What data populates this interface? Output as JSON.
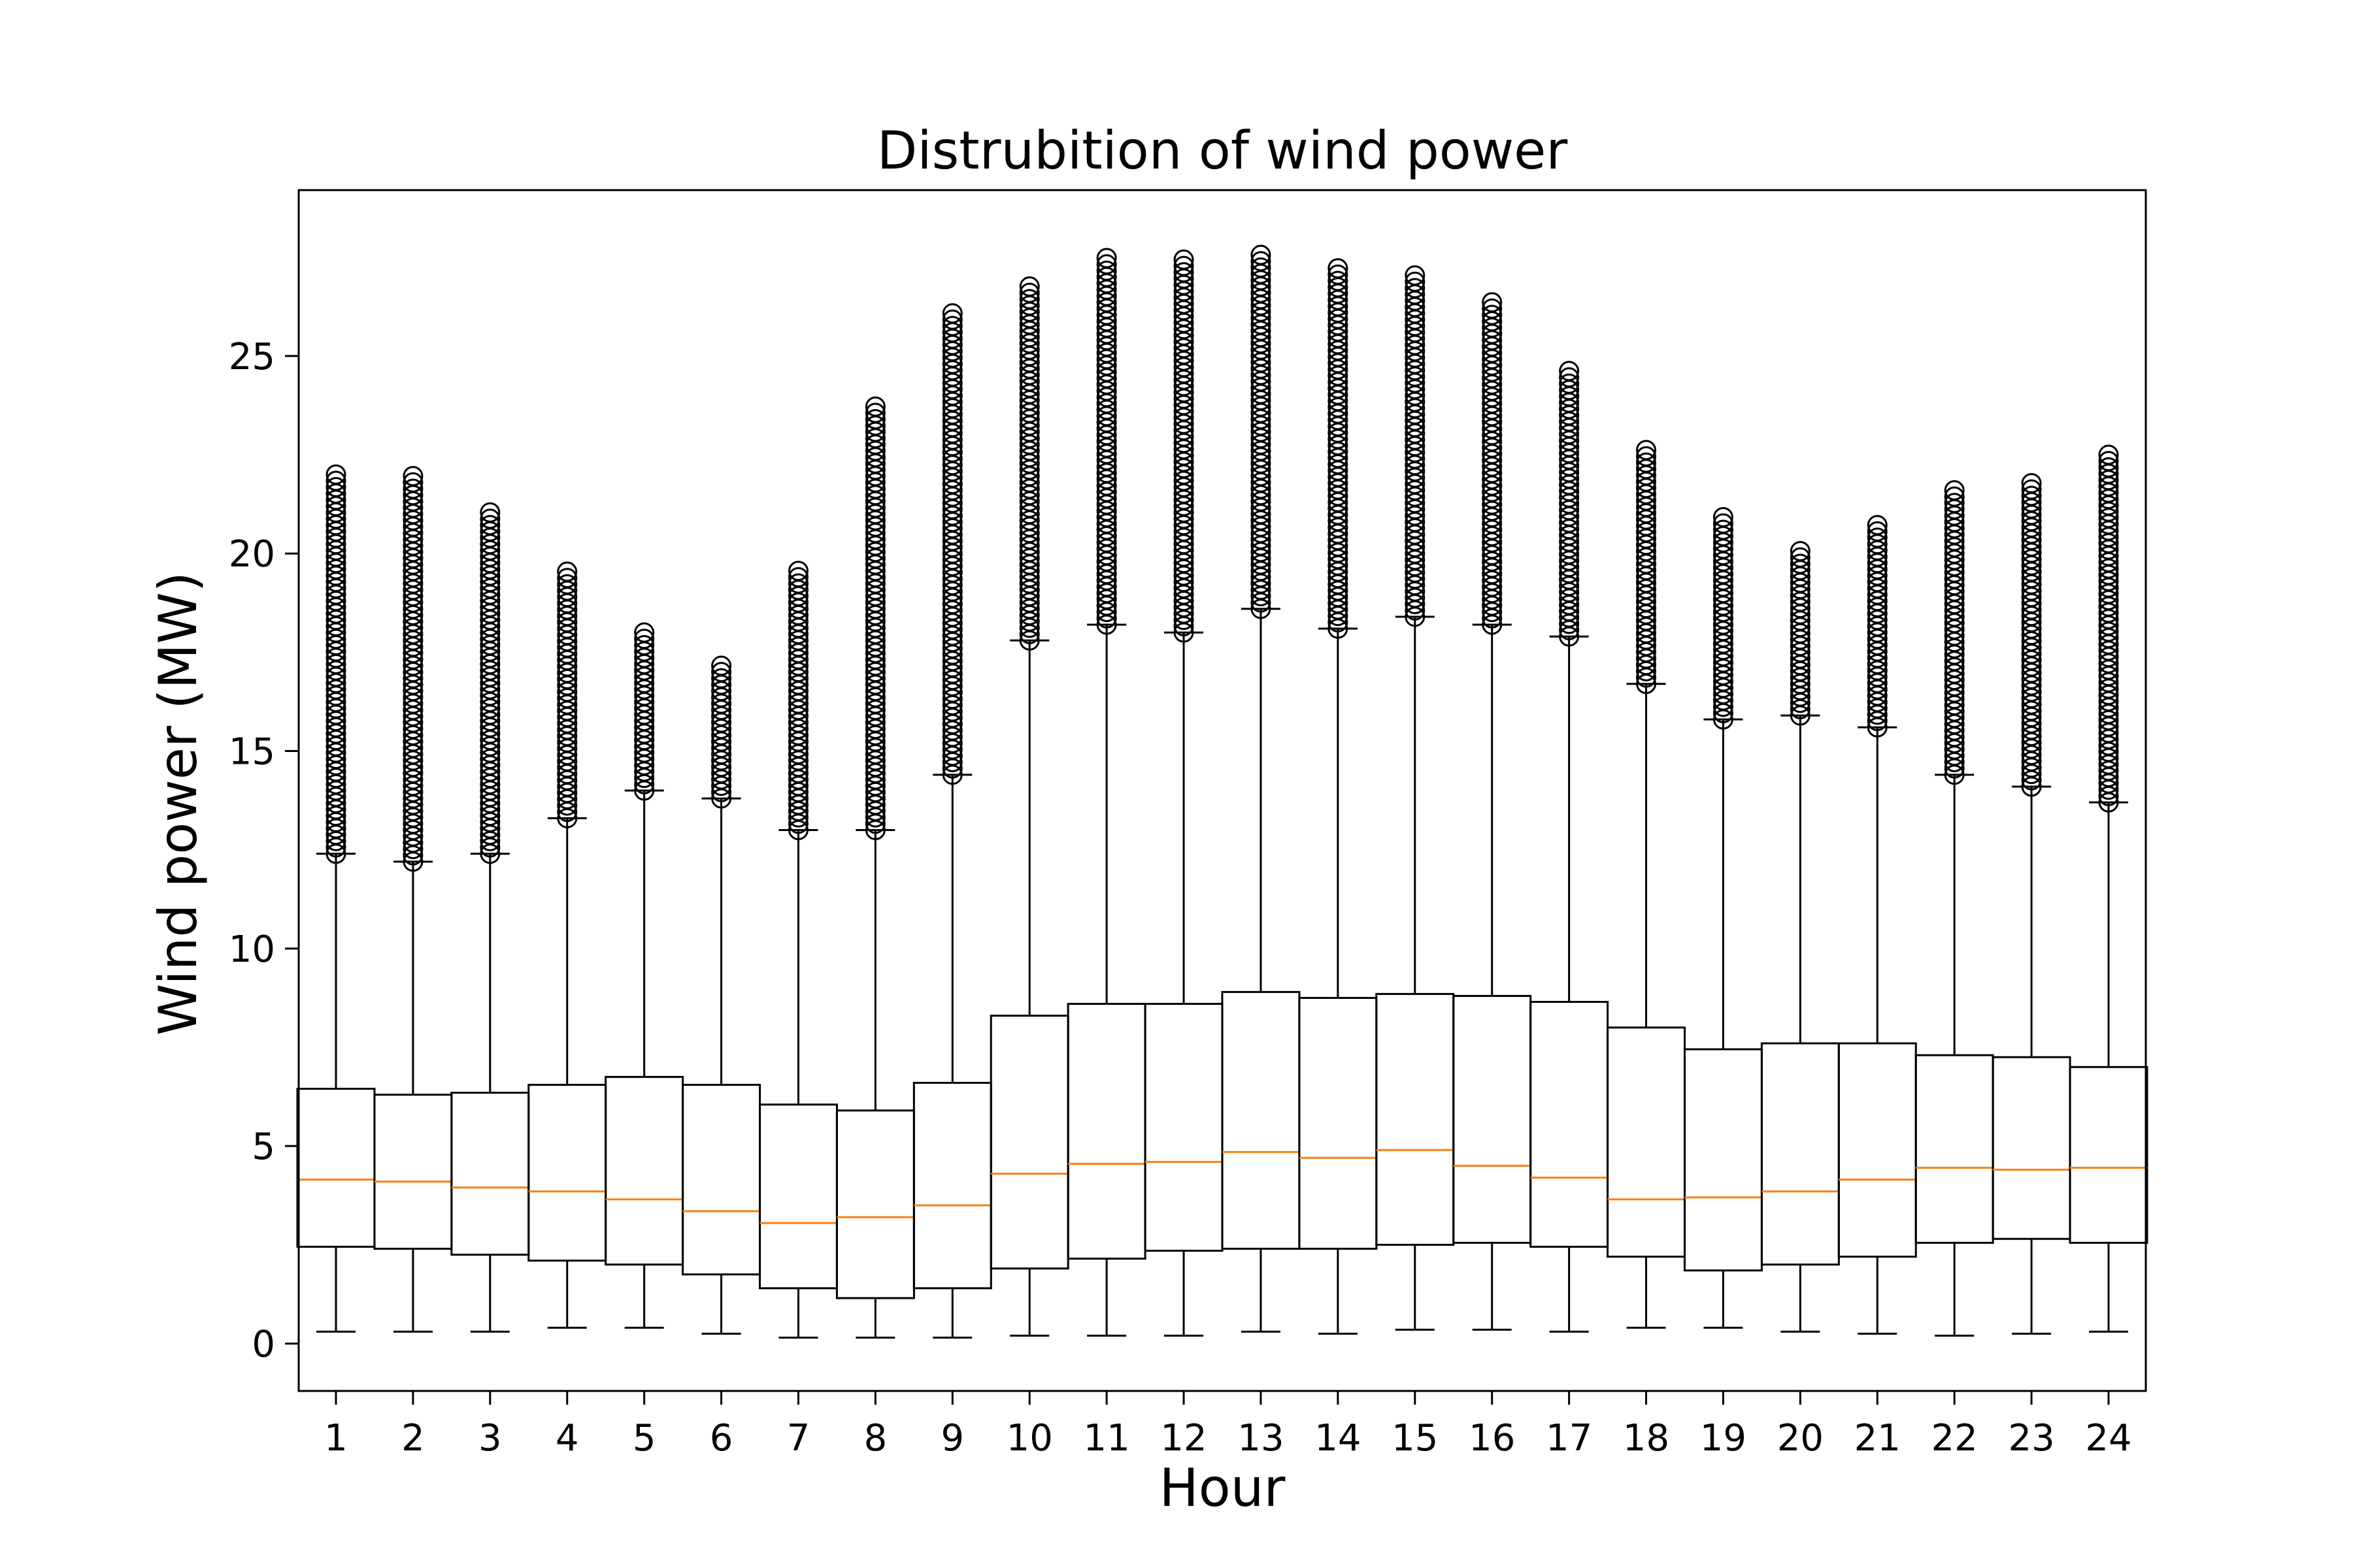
{
  "chart_data": {
    "type": "boxplot",
    "title": "Distrubition of wind power",
    "xlabel": "Hour",
    "ylabel": "Wind power (MW)",
    "ylim": [
      -1.2,
      29.2
    ],
    "yticks": [
      0,
      5,
      10,
      15,
      20,
      25
    ],
    "grid": false,
    "categories": [
      "1",
      "2",
      "3",
      "4",
      "5",
      "6",
      "7",
      "8",
      "9",
      "10",
      "11",
      "12",
      "13",
      "14",
      "15",
      "16",
      "17",
      "18",
      "19",
      "20",
      "21",
      "22",
      "23",
      "24"
    ],
    "median_color": "#ff7f0e",
    "boxes": [
      {
        "lower_whisker": 0.3,
        "q1": 2.45,
        "median": 4.15,
        "q3": 6.45,
        "upper_whisker": 12.4,
        "outliers_min": 12.4,
        "outliers_max": 22.1
      },
      {
        "lower_whisker": 0.3,
        "q1": 2.4,
        "median": 4.1,
        "q3": 6.3,
        "upper_whisker": 12.2,
        "outliers_min": 12.2,
        "outliers_max": 22.0
      },
      {
        "lower_whisker": 0.3,
        "q1": 2.25,
        "median": 3.95,
        "q3": 6.35,
        "upper_whisker": 12.4,
        "outliers_min": 12.4,
        "outliers_max": 21.1
      },
      {
        "lower_whisker": 0.4,
        "q1": 2.1,
        "median": 3.85,
        "q3": 6.55,
        "upper_whisker": 13.3,
        "outliers_min": 13.3,
        "outliers_max": 19.6
      },
      {
        "lower_whisker": 0.4,
        "q1": 2.0,
        "median": 3.65,
        "q3": 6.75,
        "upper_whisker": 14.0,
        "outliers_min": 14.0,
        "outliers_max": 18.1
      },
      {
        "lower_whisker": 0.25,
        "q1": 1.75,
        "median": 3.35,
        "q3": 6.55,
        "upper_whisker": 13.8,
        "outliers_min": 13.8,
        "outliers_max": 17.3
      },
      {
        "lower_whisker": 0.15,
        "q1": 1.4,
        "median": 3.05,
        "q3": 6.05,
        "upper_whisker": 13.0,
        "outliers_min": 13.0,
        "outliers_max": 19.6
      },
      {
        "lower_whisker": 0.15,
        "q1": 1.15,
        "median": 3.2,
        "q3": 5.9,
        "upper_whisker": 13.0,
        "outliers_min": 13.0,
        "outliers_max": 23.8
      },
      {
        "lower_whisker": 0.15,
        "q1": 1.4,
        "median": 3.5,
        "q3": 6.6,
        "upper_whisker": 14.4,
        "outliers_min": 14.4,
        "outliers_max": 26.1
      },
      {
        "lower_whisker": 0.2,
        "q1": 1.9,
        "median": 4.3,
        "q3": 8.3,
        "upper_whisker": 17.8,
        "outliers_min": 17.8,
        "outliers_max": 26.8
      },
      {
        "lower_whisker": 0.2,
        "q1": 2.15,
        "median": 4.55,
        "q3": 8.6,
        "upper_whisker": 18.2,
        "outliers_min": 18.2,
        "outliers_max": 27.5
      },
      {
        "lower_whisker": 0.2,
        "q1": 2.35,
        "median": 4.6,
        "q3": 8.6,
        "upper_whisker": 18.0,
        "outliers_min": 18.0,
        "outliers_max": 27.5
      },
      {
        "lower_whisker": 0.3,
        "q1": 2.4,
        "median": 4.85,
        "q3": 8.9,
        "upper_whisker": 18.6,
        "outliers_min": 18.6,
        "outliers_max": 27.7
      },
      {
        "lower_whisker": 0.25,
        "q1": 2.4,
        "median": 4.7,
        "q3": 8.75,
        "upper_whisker": 18.1,
        "outliers_min": 18.1,
        "outliers_max": 27.3
      },
      {
        "lower_whisker": 0.35,
        "q1": 2.5,
        "median": 4.9,
        "q3": 8.85,
        "upper_whisker": 18.4,
        "outliers_min": 18.4,
        "outliers_max": 27.1
      },
      {
        "lower_whisker": 0.35,
        "q1": 2.55,
        "median": 4.5,
        "q3": 8.8,
        "upper_whisker": 18.2,
        "outliers_min": 18.2,
        "outliers_max": 26.4
      },
      {
        "lower_whisker": 0.3,
        "q1": 2.45,
        "median": 4.2,
        "q3": 8.65,
        "upper_whisker": 17.9,
        "outliers_min": 17.9,
        "outliers_max": 24.7
      },
      {
        "lower_whisker": 0.4,
        "q1": 2.2,
        "median": 3.65,
        "q3": 8.0,
        "upper_whisker": 16.7,
        "outliers_min": 16.7,
        "outliers_max": 22.7
      },
      {
        "lower_whisker": 0.4,
        "q1": 1.85,
        "median": 3.7,
        "q3": 7.45,
        "upper_whisker": 15.8,
        "outliers_min": 15.8,
        "outliers_max": 21.0
      },
      {
        "lower_whisker": 0.3,
        "q1": 2.0,
        "median": 3.85,
        "q3": 7.6,
        "upper_whisker": 15.9,
        "outliers_min": 15.9,
        "outliers_max": 20.1
      },
      {
        "lower_whisker": 0.25,
        "q1": 2.2,
        "median": 4.15,
        "q3": 7.6,
        "upper_whisker": 15.6,
        "outliers_min": 15.6,
        "outliers_max": 20.8
      },
      {
        "lower_whisker": 0.2,
        "q1": 2.55,
        "median": 4.45,
        "q3": 7.3,
        "upper_whisker": 14.4,
        "outliers_min": 14.4,
        "outliers_max": 21.6
      },
      {
        "lower_whisker": 0.25,
        "q1": 2.65,
        "median": 4.4,
        "q3": 7.25,
        "upper_whisker": 14.1,
        "outliers_min": 14.1,
        "outliers_max": 21.8
      },
      {
        "lower_whisker": 0.3,
        "q1": 2.55,
        "median": 4.45,
        "q3": 7.0,
        "upper_whisker": 13.7,
        "outliers_min": 13.7,
        "outliers_max": 22.6
      }
    ]
  }
}
